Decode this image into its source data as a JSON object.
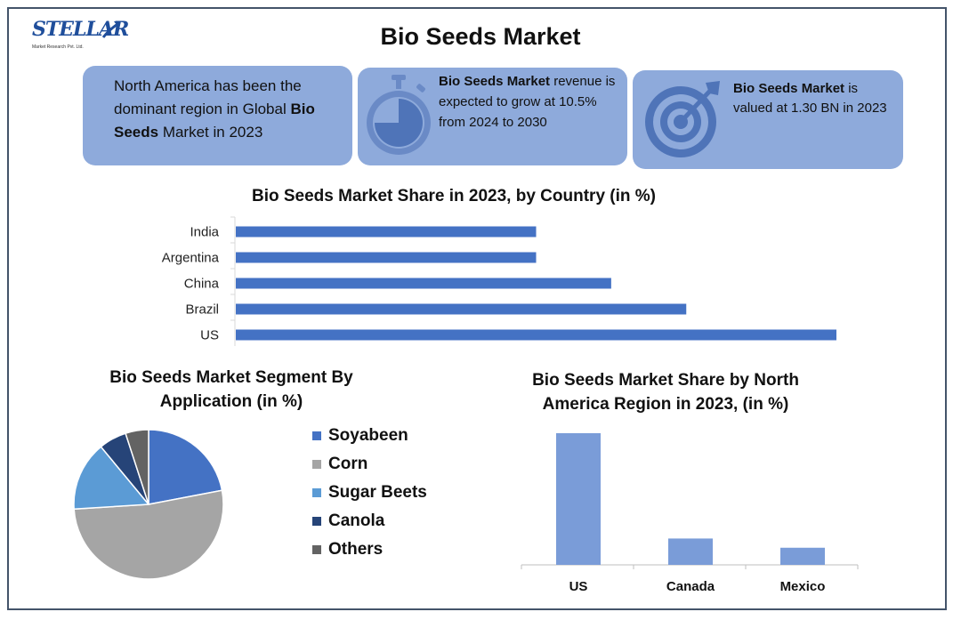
{
  "logo": {
    "name": "STELLAR",
    "subtitle": "Market Research Pvt. Ltd."
  },
  "title": "Bio Seeds Market",
  "cards": [
    {
      "text_before": "North America has been the dominant region in Global ",
      "bold": "Bio Seeds",
      "text_after": " Market in 2023",
      "icon": "none"
    },
    {
      "bold": "Bio Seeds Market",
      "text_after": " revenue is expected to grow at 10.5% from 2024 to 2030",
      "icon": "stopwatch-icon"
    },
    {
      "bold": "Bio Seeds Market",
      "text_after": " is valued at 1.30 BN in 2023",
      "icon": "target-icon"
    }
  ],
  "colors": {
    "card_bg": "#8eaadb",
    "bar_blue": "#4472c4",
    "bar_light": "#7a9cd8",
    "border": "#44546a"
  },
  "chart_data": [
    {
      "type": "bar",
      "orientation": "horizontal",
      "title": "Bio Seeds Market Share in 2023, by Country (in %)",
      "categories": [
        "India",
        "Argentina",
        "China",
        "Brazil",
        "US"
      ],
      "values": [
        20,
        20,
        25,
        30,
        40
      ],
      "xlim": [
        0,
        40
      ],
      "grid": false,
      "legend": "none"
    },
    {
      "type": "pie",
      "title": "Bio Seeds Market Segment By Application (in %)",
      "labels": [
        "Soyabeen",
        "Corn",
        "Sugar Beets",
        "Canola",
        "Others"
      ],
      "values": [
        22,
        52,
        15,
        6,
        5
      ],
      "colors": [
        "#4472c4",
        "#a5a5a5",
        "#5b9bd5",
        "#264478",
        "#636363"
      ],
      "legend": "right"
    },
    {
      "type": "bar",
      "orientation": "vertical",
      "title": "Bio Seeds Market Share by North America Region in 2023, (in %)",
      "categories": [
        "US",
        "Canada",
        "Mexico"
      ],
      "values": [
        100,
        20,
        13
      ],
      "ylim": [
        0,
        100
      ],
      "grid": false,
      "legend": "none"
    }
  ]
}
